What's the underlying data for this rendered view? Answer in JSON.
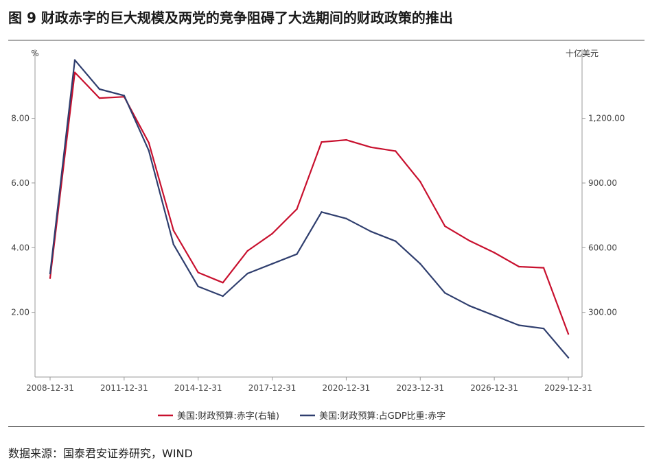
{
  "figure": {
    "title": "图 9 财政赤字的巨大规模及两党的竞争阻碍了大选期间的财政政策的推出",
    "source": "数据来源：国泰君安证券研究，WIND"
  },
  "chart_data": {
    "type": "line",
    "left_unit": "%",
    "right_unit": "十亿美元",
    "x": [
      "2008-12-31",
      "2009-12-31",
      "2010-12-31",
      "2011-12-31",
      "2012-12-31",
      "2013-12-31",
      "2014-12-31",
      "2015-12-31",
      "2016-12-31",
      "2017-12-31",
      "2018-12-31",
      "2019-12-31",
      "2020-12-31",
      "2021-12-31",
      "2022-12-31",
      "2023-12-31",
      "2024-12-31",
      "2025-12-31",
      "2026-12-31",
      "2027-12-31",
      "2028-12-31",
      "2029-12-31"
    ],
    "x_tick_labels": [
      "2008-12-31",
      "2011-12-31",
      "2014-12-31",
      "2017-12-31",
      "2020-12-31",
      "2023-12-31",
      "2026-12-31",
      "2029-12-31"
    ],
    "y_left": {
      "ticks": [
        "2.00",
        "4.00",
        "6.00",
        "8.00"
      ],
      "tick_values": [
        2,
        4,
        6,
        8
      ],
      "range": [
        0,
        10.13
      ]
    },
    "y_right": {
      "ticks": [
        "300.00",
        "600.00",
        "900.00",
        "1,200.00"
      ],
      "tick_values": [
        300,
        600,
        900,
        1200
      ],
      "range": [
        0,
        1520
      ]
    },
    "grid": false,
    "legend_position": "bottom",
    "series": [
      {
        "name": "美国:财政预算:赤字(右轴)",
        "axis": "right",
        "color": "#c8102e",
        "values": [
          459,
          1413,
          1294,
          1300,
          1087,
          680,
          485,
          438,
          585,
          665,
          779,
          1090,
          1100,
          1066,
          1048,
          906,
          700,
          632,
          577,
          512,
          507,
          200
        ]
      },
      {
        "name": "美国:财政预算:占GDP比重:赤字",
        "axis": "left",
        "color": "#2f3e6e",
        "values": [
          3.2,
          9.8,
          8.9,
          8.7,
          7.0,
          4.1,
          2.8,
          2.5,
          3.2,
          3.5,
          3.8,
          5.1,
          4.9,
          4.5,
          4.2,
          3.5,
          2.6,
          2.2,
          1.9,
          1.6,
          1.5,
          0.6
        ]
      }
    ]
  }
}
